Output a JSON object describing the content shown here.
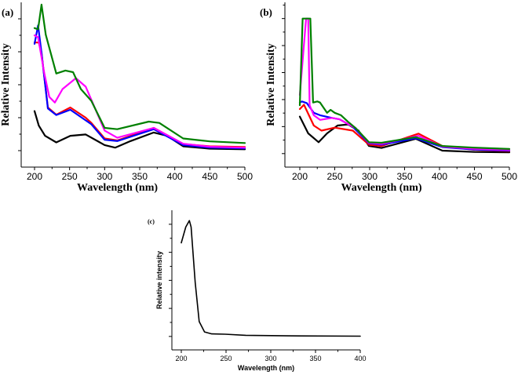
{
  "chart_data": [
    {
      "type": "line",
      "panel_label": "(a)",
      "xlabel": "Wavelength (nm)",
      "ylabel": "Relative Intensity",
      "xlim": [
        180,
        500
      ],
      "ylim": [
        -0.5,
        4.5
      ],
      "xticks": [
        200,
        250,
        300,
        350,
        400,
        450,
        500
      ],
      "yticks_major": [
        0,
        1,
        2,
        3,
        4
      ],
      "y_tick_labels_shown": false,
      "grid": false,
      "series": [
        {
          "name": "black",
          "color": "#000000",
          "points": [
            [
              200,
              1.2
            ],
            [
              206,
              0.76
            ],
            [
              215,
              0.45
            ],
            [
              231,
              0.25
            ],
            [
              251,
              0.45
            ],
            [
              273,
              0.49
            ],
            [
              300,
              0.17
            ],
            [
              315,
              0.09
            ],
            [
              337,
              0.29
            ],
            [
              370,
              0.55
            ],
            [
              389,
              0.45
            ],
            [
              412,
              0.13
            ],
            [
              450,
              0.06
            ],
            [
              500,
              0.04
            ]
          ]
        },
        {
          "name": "red",
          "color": "#ff0000",
          "points": [
            [
              200,
              3.28
            ],
            [
              206,
              3.28
            ],
            [
              210,
              2.97
            ],
            [
              219,
              1.31
            ],
            [
              231,
              1.09
            ],
            [
              251,
              1.31
            ],
            [
              273,
              1.0
            ],
            [
              281,
              0.84
            ],
            [
              300,
              0.37
            ],
            [
              318,
              0.31
            ],
            [
              370,
              0.69
            ],
            [
              412,
              0.2
            ],
            [
              450,
              0.13
            ],
            [
              500,
              0.11
            ]
          ]
        },
        {
          "name": "blue",
          "color": "#0000ff",
          "points": [
            [
              200,
              3.24
            ],
            [
              205,
              3.8
            ],
            [
              210,
              2.97
            ],
            [
              219,
              1.28
            ],
            [
              231,
              1.08
            ],
            [
              251,
              1.24
            ],
            [
              281,
              0.8
            ],
            [
              300,
              0.33
            ],
            [
              318,
              0.29
            ],
            [
              370,
              0.65
            ],
            [
              412,
              0.17
            ],
            [
              450,
              0.09
            ],
            [
              500,
              0.07
            ]
          ]
        },
        {
          "name": "magenta",
          "color": "#ff00ff",
          "points": [
            [
              200,
              3.5
            ],
            [
              205,
              3.44
            ],
            [
              214,
              2.34
            ],
            [
              221,
              1.63
            ],
            [
              229,
              1.46
            ],
            [
              240,
              1.87
            ],
            [
              259,
              2.2
            ],
            [
              273,
              1.94
            ],
            [
              300,
              0.61
            ],
            [
              318,
              0.39
            ],
            [
              370,
              0.69
            ],
            [
              412,
              0.21
            ],
            [
              450,
              0.12
            ],
            [
              500,
              0.09
            ]
          ]
        },
        {
          "name": "green",
          "color": "#008000",
          "points": [
            [
              200,
              3.72
            ],
            [
              205,
              3.68
            ],
            [
              210,
              4.43
            ],
            [
              216,
              3.52
            ],
            [
              231,
              2.34
            ],
            [
              244,
              2.43
            ],
            [
              255,
              2.38
            ],
            [
              266,
              1.87
            ],
            [
              281,
              1.51
            ],
            [
              300,
              0.69
            ],
            [
              318,
              0.65
            ],
            [
              363,
              0.88
            ],
            [
              378,
              0.84
            ],
            [
              412,
              0.37
            ],
            [
              450,
              0.28
            ],
            [
              500,
              0.23
            ]
          ]
        }
      ]
    },
    {
      "type": "line",
      "panel_label": "(b)",
      "xlabel": "Wavelength (nm)",
      "ylabel": "Relative Intensity",
      "xlim": [
        180,
        500
      ],
      "ylim": [
        -0.5,
        5.6
      ],
      "xticks": [
        200,
        250,
        300,
        350,
        400,
        450,
        500
      ],
      "yticks_major": [
        0,
        1,
        2,
        3,
        4,
        5
      ],
      "y_tick_labels_shown": false,
      "grid": false,
      "series": [
        {
          "name": "black",
          "color": "#000000",
          "points": [
            [
              200,
              1.37
            ],
            [
              212,
              0.75
            ],
            [
              227,
              0.42
            ],
            [
              239,
              0.75
            ],
            [
              254,
              1.04
            ],
            [
              269,
              1.08
            ],
            [
              284,
              0.85
            ],
            [
              299,
              0.28
            ],
            [
              317,
              0.21
            ],
            [
              366,
              0.55
            ],
            [
              404,
              0.11
            ],
            [
              450,
              0.06
            ],
            [
              500,
              0.05
            ]
          ]
        },
        {
          "name": "red",
          "color": "#ff0000",
          "points": [
            [
              200,
              1.65
            ],
            [
              206,
              1.81
            ],
            [
              220,
              1.04
            ],
            [
              231,
              0.85
            ],
            [
              250,
              0.96
            ],
            [
              276,
              0.85
            ],
            [
              299,
              0.33
            ],
            [
              317,
              0.28
            ],
            [
              370,
              0.74
            ],
            [
              404,
              0.28
            ],
            [
              450,
              0.14
            ],
            [
              500,
              0.09
            ]
          ]
        },
        {
          "name": "blue",
          "color": "#0000ff",
          "points": [
            [
              200,
              1.89
            ],
            [
              203,
              1.93
            ],
            [
              210,
              1.87
            ],
            [
              220,
              1.51
            ],
            [
              229,
              1.42
            ],
            [
              246,
              1.32
            ],
            [
              257,
              1.27
            ],
            [
              276,
              0.99
            ],
            [
              299,
              0.38
            ],
            [
              317,
              0.33
            ],
            [
              366,
              0.57
            ],
            [
              404,
              0.24
            ],
            [
              450,
              0.15
            ],
            [
              500,
              0.11
            ]
          ]
        },
        {
          "name": "magenta",
          "color": "#ff00ff",
          "points": [
            [
              200,
              2.17
            ],
            [
              209,
              5.0
            ],
            [
              212,
              5.0
            ],
            [
              214,
              1.79
            ],
            [
              220,
              1.42
            ],
            [
              229,
              1.25
            ],
            [
              246,
              1.32
            ],
            [
              257,
              1.27
            ],
            [
              280,
              0.94
            ],
            [
              299,
              0.4
            ],
            [
              317,
              0.36
            ],
            [
              370,
              0.66
            ],
            [
              404,
              0.26
            ],
            [
              450,
              0.18
            ],
            [
              500,
              0.14
            ]
          ]
        },
        {
          "name": "green",
          "color": "#008000",
          "points": [
            [
              200,
              1.79
            ],
            [
              204,
              5.0
            ],
            [
              215,
              5.0
            ],
            [
              219,
              1.89
            ],
            [
              225,
              1.93
            ],
            [
              229,
              1.89
            ],
            [
              239,
              1.51
            ],
            [
              244,
              1.62
            ],
            [
              250,
              1.51
            ],
            [
              259,
              1.42
            ],
            [
              269,
              1.18
            ],
            [
              280,
              0.94
            ],
            [
              299,
              0.42
            ],
            [
              317,
              0.4
            ],
            [
              366,
              0.61
            ],
            [
              404,
              0.28
            ],
            [
              450,
              0.22
            ],
            [
              500,
              0.17
            ]
          ]
        }
      ]
    },
    {
      "type": "line",
      "panel_label": "(c)",
      "xlabel": "Wavelength (nm)",
      "ylabel": "Relative intensity",
      "xlim": [
        190,
        400
      ],
      "ylim": [
        -0.48,
        4.5
      ],
      "xticks": [
        200,
        250,
        300,
        350,
        400
      ],
      "yticks_major": [
        0,
        1,
        2,
        3,
        4
      ],
      "y_tick_labels_shown": false,
      "grid": false,
      "series": [
        {
          "name": "sample",
          "color": "#000000",
          "points": [
            [
              200,
              3.34
            ],
            [
              205,
              3.9
            ],
            [
              209,
              4.13
            ],
            [
              211,
              3.9
            ],
            [
              215.5,
              1.93
            ],
            [
              220,
              0.53
            ],
            [
              226,
              0.16
            ],
            [
              234,
              0.09
            ],
            [
              249,
              0.08
            ],
            [
              272,
              0.04
            ],
            [
              320,
              0.02
            ],
            [
              400,
              0.01
            ]
          ]
        }
      ]
    }
  ]
}
